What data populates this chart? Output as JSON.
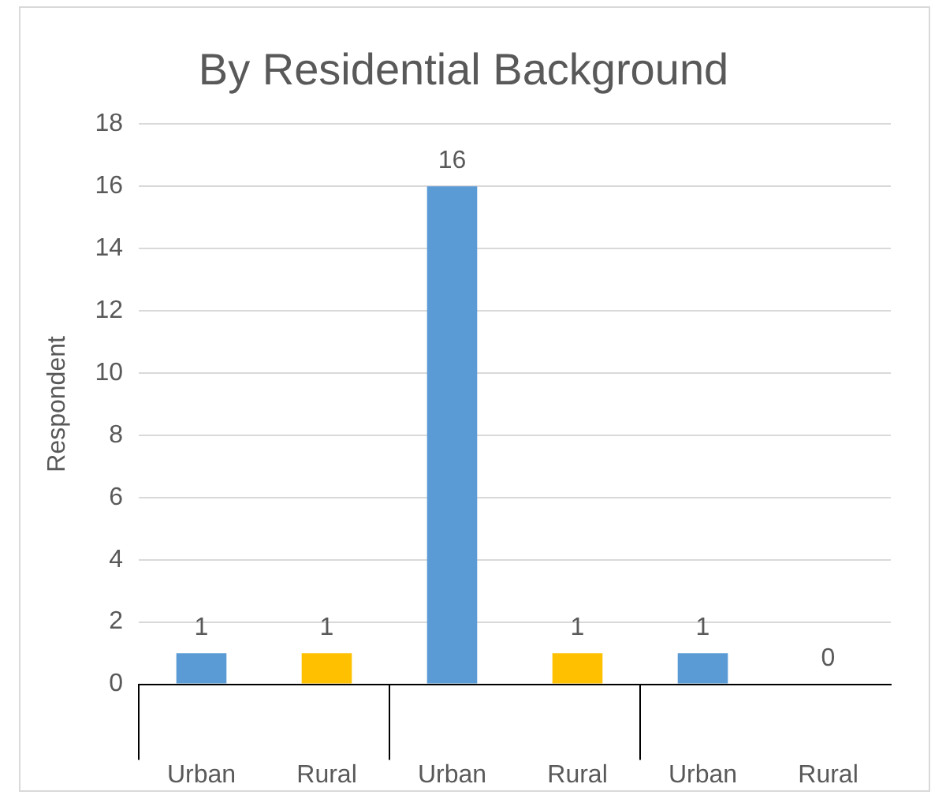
{
  "chart_data": {
    "type": "bar",
    "title": "By Residential Background",
    "ylabel": "Respondent",
    "categories": [
      "Urban",
      "Rural",
      "Urban",
      "Rural",
      "Urban",
      "Rural"
    ],
    "values": [
      1,
      1,
      16,
      1,
      1,
      0
    ],
    "colors": [
      "#5b9bd5",
      "#ffc000",
      "#5b9bd5",
      "#ffc000",
      "#5b9bd5",
      "#ffc000"
    ],
    "ylim": [
      0,
      18
    ],
    "yticks": [
      0,
      2,
      4,
      6,
      8,
      10,
      12,
      14,
      16,
      18
    ],
    "grid": "y",
    "legend": false,
    "data_labels": true
  }
}
